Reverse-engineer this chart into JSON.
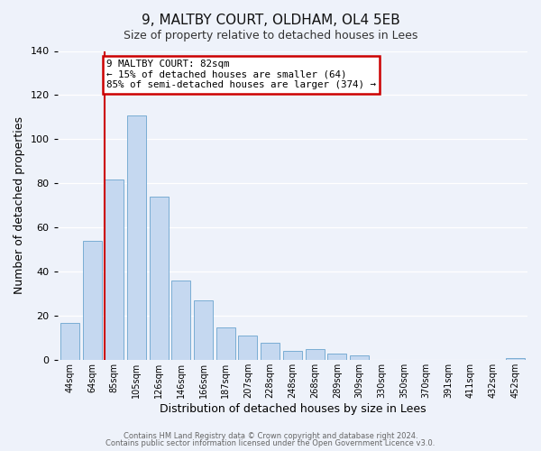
{
  "title": "9, MALTBY COURT, OLDHAM, OL4 5EB",
  "subtitle": "Size of property relative to detached houses in Lees",
  "xlabel": "Distribution of detached houses by size in Lees",
  "ylabel": "Number of detached properties",
  "bar_labels": [
    "44sqm",
    "64sqm",
    "85sqm",
    "105sqm",
    "126sqm",
    "146sqm",
    "166sqm",
    "187sqm",
    "207sqm",
    "228sqm",
    "248sqm",
    "268sqm",
    "289sqm",
    "309sqm",
    "330sqm",
    "350sqm",
    "370sqm",
    "391sqm",
    "411sqm",
    "432sqm",
    "452sqm"
  ],
  "bar_values": [
    17,
    54,
    82,
    111,
    74,
    36,
    27,
    15,
    11,
    8,
    4,
    5,
    3,
    2,
    0,
    0,
    0,
    0,
    0,
    0,
    1
  ],
  "bar_color": "#c5d8f0",
  "bar_edge_color": "#7aadd4",
  "marker_bin_index": 2,
  "marker_label": "9 MALTBY COURT: 82sqm",
  "annotation_line1": "← 15% of detached houses are smaller (64)",
  "annotation_line2": "85% of semi-detached houses are larger (374) →",
  "annotation_box_facecolor": "#ffffff",
  "annotation_box_edgecolor": "#cc0000",
  "marker_line_color": "#cc0000",
  "ylim": [
    0,
    140
  ],
  "yticks": [
    0,
    20,
    40,
    60,
    80,
    100,
    120,
    140
  ],
  "footer1": "Contains HM Land Registry data © Crown copyright and database right 2024.",
  "footer2": "Contains public sector information licensed under the Open Government Licence v3.0.",
  "background_color": "#eef2fa",
  "grid_color": "#ffffff",
  "title_fontsize": 11,
  "subtitle_fontsize": 9,
  "axis_label_fontsize": 8,
  "tick_fontsize": 7,
  "footer_fontsize": 6
}
